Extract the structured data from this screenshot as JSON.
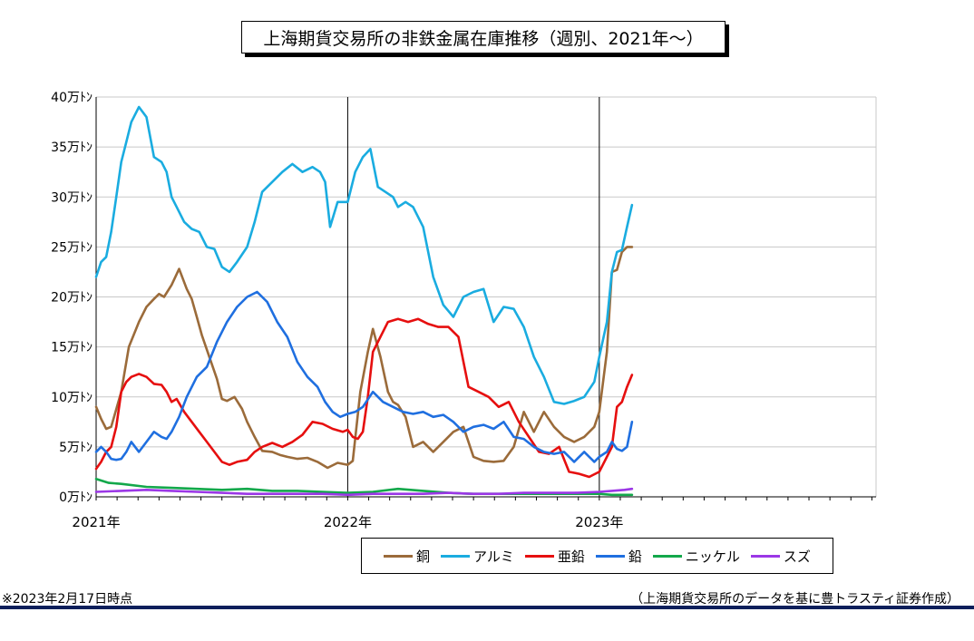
{
  "title": "上海期貨交易所の非鉄金属在庫推移（週別、2021年～）",
  "footnote_left": "※2023年2月17日時点",
  "footnote_right": "（上海期貨交易所のデータを基に豊トラスティ証券作成）",
  "chart_data": {
    "type": "line",
    "y_tick_labels": [
      "0万ﾄﾝ",
      "5万ﾄﾝ",
      "10万ﾄﾝ",
      "15万ﾄﾝ",
      "20万ﾄﾝ",
      "25万ﾄﾝ",
      "30万ﾄﾝ",
      "35万ﾄﾝ",
      "40万ﾄﾝ"
    ],
    "ylim": [
      0,
      40
    ],
    "y_unit": "万ﾄﾝ",
    "x_tick_labels": [
      "2021年",
      "2022年",
      "2023年"
    ],
    "x_tick_values": [
      2021.0,
      2022.0,
      2023.0
    ],
    "xlim": [
      2021.0,
      2024.1
    ],
    "grid": true,
    "legend_position": "bottom",
    "series": [
      {
        "name": "銅",
        "color": "#9b6b3a",
        "x": [
          2021.0,
          2021.02,
          2021.04,
          2021.06,
          2021.1,
          2021.13,
          2021.17,
          2021.2,
          2021.23,
          2021.25,
          2021.27,
          2021.3,
          2021.33,
          2021.36,
          2021.38,
          2021.4,
          2021.42,
          2021.45,
          2021.48,
          2021.5,
          2021.52,
          2021.55,
          2021.58,
          2021.6,
          2021.63,
          2021.66,
          2021.7,
          2021.73,
          2021.76,
          2021.8,
          2021.84,
          2021.88,
          2021.92,
          2021.96,
          2022.0,
          2022.02,
          2022.05,
          2022.08,
          2022.1,
          2022.13,
          2022.16,
          2022.18,
          2022.2,
          2022.23,
          2022.26,
          2022.3,
          2022.34,
          2022.38,
          2022.42,
          2022.46,
          2022.5,
          2022.54,
          2022.58,
          2022.62,
          2022.66,
          2022.7,
          2022.74,
          2022.78,
          2022.82,
          2022.86,
          2022.9,
          2022.94,
          2022.98,
          2023.0,
          2023.03,
          2023.05,
          2023.07,
          2023.09,
          2023.11,
          2023.13
        ],
        "values": [
          9.0,
          7.8,
          6.8,
          7.0,
          10.5,
          15.0,
          17.5,
          19.0,
          19.8,
          20.3,
          20.0,
          21.2,
          22.8,
          20.8,
          19.8,
          18.0,
          16.2,
          14.0,
          11.8,
          9.8,
          9.6,
          10.0,
          8.8,
          7.5,
          6.0,
          4.6,
          4.5,
          4.2,
          4.0,
          3.8,
          3.9,
          3.5,
          2.9,
          3.4,
          3.2,
          3.6,
          10.5,
          14.5,
          16.8,
          14.0,
          10.5,
          9.5,
          9.2,
          8.0,
          5.0,
          5.5,
          4.5,
          5.5,
          6.5,
          7.0,
          4.0,
          3.6,
          3.5,
          3.6,
          5.0,
          8.5,
          6.5,
          8.5,
          7.0,
          6.0,
          5.5,
          6.0,
          7.0,
          8.5,
          14.5,
          22.5,
          22.7,
          24.5,
          25.0,
          25.0
        ]
      },
      {
        "name": "アルミ",
        "color": "#1aace0",
        "x": [
          2021.0,
          2021.02,
          2021.04,
          2021.06,
          2021.08,
          2021.1,
          2021.12,
          2021.14,
          2021.17,
          2021.2,
          2021.23,
          2021.26,
          2021.28,
          2021.3,
          2021.32,
          2021.35,
          2021.38,
          2021.41,
          2021.44,
          2021.47,
          2021.5,
          2021.53,
          2021.56,
          2021.6,
          2021.63,
          2021.66,
          2021.7,
          2021.74,
          2021.78,
          2021.82,
          2021.86,
          2021.89,
          2021.91,
          2021.93,
          2021.96,
          2022.0,
          2022.03,
          2022.06,
          2022.09,
          2022.12,
          2022.15,
          2022.18,
          2022.2,
          2022.23,
          2022.26,
          2022.3,
          2022.34,
          2022.38,
          2022.42,
          2022.46,
          2022.5,
          2022.54,
          2022.58,
          2022.62,
          2022.66,
          2022.7,
          2022.74,
          2022.78,
          2022.82,
          2022.86,
          2022.9,
          2022.94,
          2022.98,
          2023.0,
          2023.03,
          2023.05,
          2023.07,
          2023.09,
          2023.11,
          2023.13
        ],
        "values": [
          22.0,
          23.5,
          24.0,
          26.5,
          30.0,
          33.5,
          35.5,
          37.5,
          39.0,
          38.0,
          34.0,
          33.5,
          32.5,
          30.0,
          29.0,
          27.5,
          26.8,
          26.5,
          25.0,
          24.8,
          23.0,
          22.5,
          23.5,
          25.0,
          27.5,
          30.5,
          31.5,
          32.5,
          33.3,
          32.5,
          33.0,
          32.5,
          31.5,
          27.0,
          29.5,
          29.5,
          32.5,
          34.0,
          34.8,
          31.0,
          30.5,
          30.0,
          29.0,
          29.5,
          29.0,
          27.0,
          22.0,
          19.2,
          18.0,
          20.0,
          20.5,
          20.8,
          17.5,
          19.0,
          18.8,
          17.0,
          14.0,
          12.0,
          9.5,
          9.3,
          9.6,
          10.0,
          11.5,
          14.0,
          17.5,
          22.5,
          24.5,
          24.7,
          27.0,
          29.2
        ]
      },
      {
        "name": "亜鉛",
        "color": "#e60f0f",
        "x": [
          2021.0,
          2021.02,
          2021.04,
          2021.06,
          2021.08,
          2021.1,
          2021.12,
          2021.14,
          2021.17,
          2021.2,
          2021.23,
          2021.26,
          2021.28,
          2021.3,
          2021.32,
          2021.35,
          2021.38,
          2021.41,
          2021.44,
          2021.47,
          2021.5,
          2021.53,
          2021.56,
          2021.6,
          2021.63,
          2021.66,
          2021.7,
          2021.74,
          2021.78,
          2021.82,
          2021.86,
          2021.9,
          2021.94,
          2021.98,
          2022.0,
          2022.02,
          2022.04,
          2022.06,
          2022.08,
          2022.1,
          2022.13,
          2022.16,
          2022.2,
          2022.24,
          2022.28,
          2022.32,
          2022.36,
          2022.4,
          2022.44,
          2022.48,
          2022.52,
          2022.56,
          2022.6,
          2022.64,
          2022.68,
          2022.72,
          2022.76,
          2022.8,
          2022.84,
          2022.88,
          2022.92,
          2022.96,
          2023.0,
          2023.03,
          2023.05,
          2023.07,
          2023.09,
          2023.11,
          2023.13
        ],
        "values": [
          2.8,
          3.5,
          4.5,
          5.0,
          7.0,
          10.5,
          11.5,
          12.0,
          12.3,
          12.0,
          11.3,
          11.2,
          10.5,
          9.5,
          9.8,
          8.5,
          7.5,
          6.5,
          5.5,
          4.5,
          3.5,
          3.2,
          3.5,
          3.7,
          4.5,
          5.0,
          5.4,
          5.0,
          5.5,
          6.2,
          7.5,
          7.3,
          6.8,
          6.5,
          6.7,
          6.0,
          5.8,
          6.5,
          10.0,
          14.5,
          16.0,
          17.5,
          17.8,
          17.5,
          17.8,
          17.3,
          17.0,
          17.0,
          16.0,
          11.0,
          10.5,
          10.0,
          9.0,
          9.5,
          7.5,
          6.0,
          4.5,
          4.3,
          5.0,
          2.5,
          2.3,
          2.0,
          2.5,
          4.0,
          5.0,
          9.0,
          9.5,
          11.0,
          12.2
        ]
      },
      {
        "name": "鉛",
        "color": "#1f6fe0",
        "x": [
          2021.0,
          2021.02,
          2021.04,
          2021.06,
          2021.08,
          2021.1,
          2021.12,
          2021.14,
          2021.17,
          2021.2,
          2021.23,
          2021.26,
          2021.28,
          2021.3,
          2021.33,
          2021.36,
          2021.4,
          2021.44,
          2021.48,
          2021.52,
          2021.56,
          2021.6,
          2021.64,
          2021.68,
          2021.72,
          2021.76,
          2021.8,
          2021.84,
          2021.88,
          2021.91,
          2021.94,
          2021.97,
          2022.0,
          2022.03,
          2022.06,
          2022.1,
          2022.14,
          2022.18,
          2022.22,
          2022.26,
          2022.3,
          2022.34,
          2022.38,
          2022.42,
          2022.46,
          2022.5,
          2022.54,
          2022.58,
          2022.62,
          2022.66,
          2022.7,
          2022.74,
          2022.78,
          2022.82,
          2022.86,
          2022.9,
          2022.94,
          2022.98,
          2023.0,
          2023.03,
          2023.05,
          2023.07,
          2023.09,
          2023.11,
          2023.13
        ],
        "values": [
          4.5,
          5.0,
          4.5,
          3.8,
          3.7,
          3.8,
          4.5,
          5.5,
          4.5,
          5.5,
          6.5,
          6.0,
          5.8,
          6.5,
          8.0,
          10.0,
          12.0,
          13.0,
          15.5,
          17.5,
          19.0,
          20.0,
          20.5,
          19.5,
          17.5,
          16.0,
          13.5,
          12.0,
          11.0,
          9.5,
          8.5,
          8.0,
          8.3,
          8.5,
          9.0,
          10.5,
          9.5,
          9.0,
          8.5,
          8.3,
          8.5,
          8.0,
          8.2,
          7.5,
          6.5,
          7.0,
          7.2,
          6.8,
          7.5,
          6.0,
          5.8,
          5.0,
          4.5,
          4.3,
          4.5,
          3.5,
          4.5,
          3.5,
          4.0,
          4.5,
          5.5,
          4.8,
          4.6,
          5.0,
          7.5
        ]
      },
      {
        "name": "ニッケル",
        "color": "#13a84b",
        "x": [
          2021.0,
          2021.05,
          2021.1,
          2021.2,
          2021.3,
          2021.4,
          2021.5,
          2021.6,
          2021.7,
          2021.8,
          2021.9,
          2022.0,
          2022.1,
          2022.2,
          2022.3,
          2022.4,
          2022.5,
          2022.6,
          2022.7,
          2022.8,
          2022.9,
          2023.0,
          2023.05,
          2023.1,
          2023.13
        ],
        "values": [
          1.8,
          1.4,
          1.3,
          1.0,
          0.9,
          0.8,
          0.7,
          0.8,
          0.6,
          0.6,
          0.5,
          0.4,
          0.5,
          0.8,
          0.6,
          0.4,
          0.3,
          0.3,
          0.3,
          0.3,
          0.3,
          0.3,
          0.2,
          0.2,
          0.2
        ]
      },
      {
        "name": "スズ",
        "color": "#9b37e6",
        "x": [
          2021.0,
          2021.1,
          2021.2,
          2021.3,
          2021.4,
          2021.5,
          2021.6,
          2021.7,
          2021.8,
          2021.9,
          2022.0,
          2022.1,
          2022.2,
          2022.3,
          2022.4,
          2022.5,
          2022.6,
          2022.7,
          2022.8,
          2022.9,
          2023.0,
          2023.05,
          2023.1,
          2023.13
        ],
        "values": [
          0.5,
          0.6,
          0.7,
          0.6,
          0.5,
          0.4,
          0.3,
          0.3,
          0.3,
          0.3,
          0.2,
          0.3,
          0.3,
          0.3,
          0.4,
          0.3,
          0.3,
          0.4,
          0.4,
          0.4,
          0.5,
          0.6,
          0.7,
          0.8
        ]
      }
    ]
  }
}
